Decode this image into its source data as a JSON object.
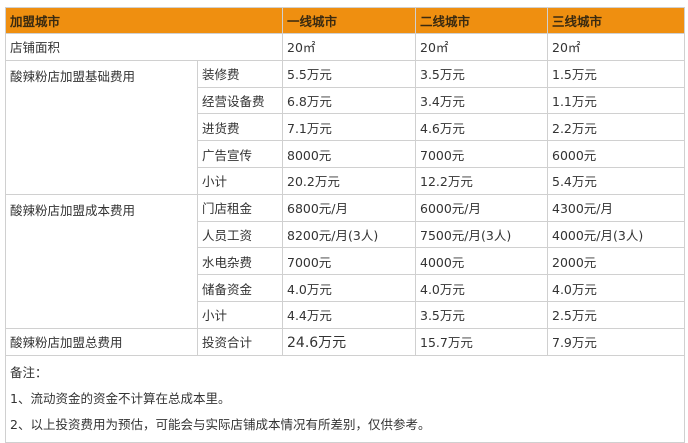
{
  "header": {
    "label": "加盟城市",
    "cities": [
      "一线城市",
      "二线城市",
      "三线城市"
    ]
  },
  "area": {
    "label": "店铺面积",
    "values": [
      "20㎡",
      "20㎡",
      "20㎡"
    ]
  },
  "groups": [
    {
      "label": "酸辣粉店加盟基础费用",
      "items": [
        {
          "name": "装修费",
          "values": [
            "5.5万元",
            "3.5万元",
            "1.5万元"
          ]
        },
        {
          "name": "经营设备费",
          "values": [
            "6.8万元",
            "3.4万元",
            "1.1万元"
          ]
        },
        {
          "name": "进货费",
          "values": [
            "7.1万元",
            "4.6万元",
            "2.2万元"
          ]
        },
        {
          "name": "广告宣传",
          "values": [
            "8000元",
            "7000元",
            "6000元"
          ]
        },
        {
          "name": "小计",
          "values": [
            "20.2万元",
            "12.2万元",
            "5.4万元"
          ]
        }
      ]
    },
    {
      "label": "酸辣粉店加盟成本费用",
      "items": [
        {
          "name": "门店租金",
          "values": [
            "6800元/月",
            "6000元/月",
            "4300元/月"
          ]
        },
        {
          "name": "人员工资",
          "values": [
            "8200元/月(3人)",
            "7500元/月(3人)",
            "4000元/月(3人)"
          ]
        },
        {
          "name": "水电杂费",
          "values": [
            "7000元",
            "4000元",
            "2000元"
          ]
        },
        {
          "name": "储备资金",
          "values": [
            "4.0万元",
            "4.0万元",
            "4.0万元"
          ]
        },
        {
          "name": "小计",
          "values": [
            "4.4万元",
            "3.5万元",
            "2.5万元"
          ]
        }
      ]
    }
  ],
  "total": {
    "label": "酸辣粉店加盟总费用",
    "name": "投资合计",
    "values": [
      "24.6万元",
      "15.7万元",
      "7.9万元"
    ]
  },
  "notes": {
    "title": "备注：",
    "lines": [
      "1、流动资金的资金不计算在总成本里。",
      "2、以上投资费用为预估，可能会与实际店铺成本情况有所差别，仅供参考。"
    ]
  }
}
